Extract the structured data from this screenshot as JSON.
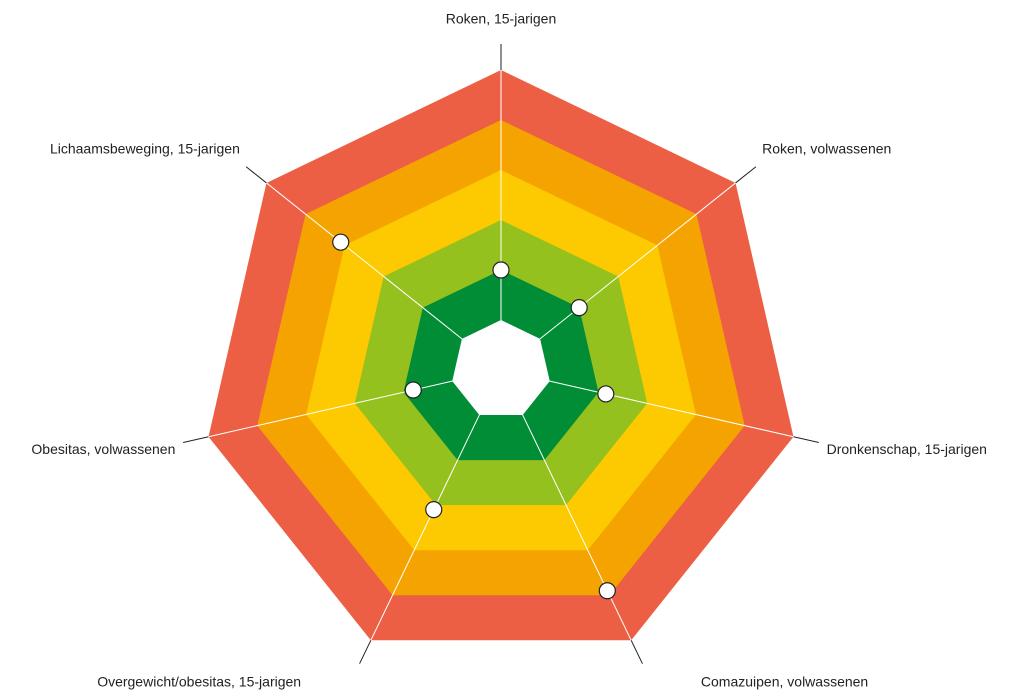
{
  "chart_data": {
    "type": "radar",
    "categories": [
      "Roken, 15-jarigen",
      "Roken, volwassenen",
      "Dronkenschap, 15-jarigen",
      "Comazuipen, volwassenen",
      "Overgewicht/obesitas, 15-jarigen",
      "Obesitas, volwassenen",
      "Lichaamsbeweging, 15-jarigen"
    ],
    "values": [
      2.0,
      2.0,
      2.15,
      4.9,
      3.1,
      1.8,
      4.1
    ],
    "rlim": [
      0,
      6
    ],
    "rticks": [
      1,
      2,
      3,
      4,
      5,
      6
    ],
    "band_colors": [
      "#ffffff",
      "#008d36",
      "#95c11f",
      "#fdc900",
      "#f5a300",
      "#ec5f44"
    ],
    "marker_color": "#ffffff"
  }
}
